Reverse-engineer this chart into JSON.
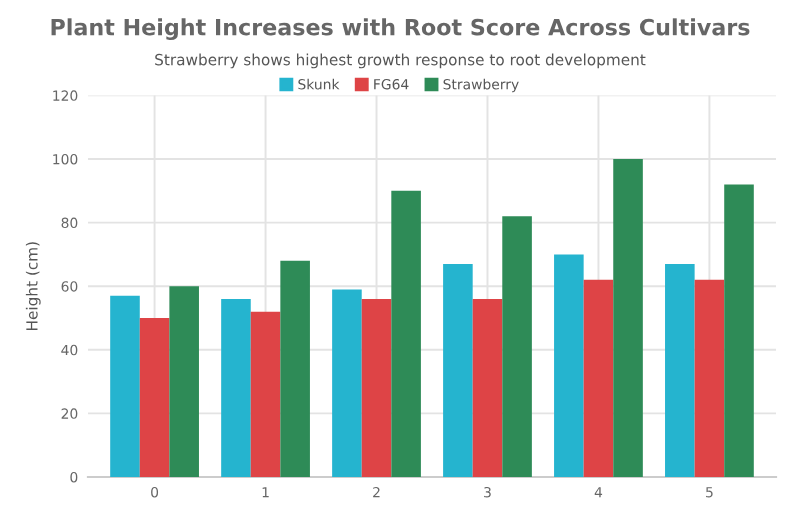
{
  "chart_data": {
    "type": "bar",
    "title": "Plant Height Increases with Root Score Across Cultivars",
    "subtitle": "Strawberry shows highest growth response to root development",
    "ylabel": "Height (cm)",
    "categories": [
      "0",
      "1",
      "2",
      "3",
      "4",
      "5"
    ],
    "series": [
      {
        "name": "Skunk",
        "color": "#25b4cf",
        "values": [
          57,
          56,
          59,
          67,
          70,
          67
        ]
      },
      {
        "name": "FG64",
        "color": "#de4446",
        "values": [
          50,
          52,
          56,
          56,
          62,
          62
        ]
      },
      {
        "name": "Strawberry",
        "color": "#2e8b57",
        "values": [
          60,
          68,
          90,
          82,
          100,
          92
        ]
      }
    ],
    "ylim": [
      0,
      120
    ],
    "yticks": [
      0,
      20,
      40,
      60,
      80,
      100,
      120
    ],
    "grid": true,
    "legend": "top"
  }
}
